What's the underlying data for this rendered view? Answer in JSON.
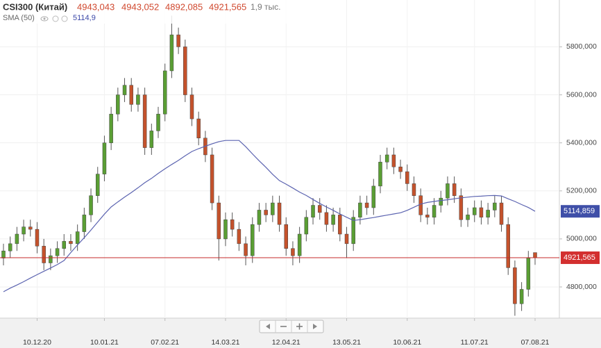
{
  "chart_data": {
    "type": "candlestick",
    "header": {
      "name": "CSI300 (Китай)",
      "open": "4943,043",
      "high": "4943,052",
      "low": "4892,085",
      "close": "4921,565",
      "volume": "1,9 тыс."
    },
    "sma_header": {
      "label": "SMA (50)",
      "value": "5114,9"
    },
    "categories": [
      null,
      null,
      null,
      null,
      null,
      "10.12.20",
      null,
      null,
      null,
      null,
      null,
      null,
      null,
      null,
      null,
      "10.01.21",
      null,
      null,
      null,
      null,
      null,
      null,
      null,
      null,
      "07.02.21",
      null,
      null,
      null,
      null,
      null,
      null,
      null,
      null,
      "14.03.21",
      null,
      null,
      null,
      null,
      null,
      null,
      null,
      null,
      "12.04.21",
      null,
      null,
      null,
      null,
      null,
      null,
      null,
      null,
      "13.05.21",
      null,
      null,
      null,
      null,
      null,
      null,
      null,
      null,
      "10.06.21",
      null,
      null,
      null,
      null,
      null,
      null,
      null,
      null,
      null,
      "11.07.21",
      null,
      null,
      null,
      null,
      null,
      null,
      null,
      null,
      "07.08.21"
    ],
    "open": [
      4920,
      4950,
      4980,
      5020,
      5050,
      5040,
      4970,
      4900,
      4930,
      4960,
      4990,
      4980,
      5030,
      5100,
      5180,
      5270,
      5400,
      5520,
      5600,
      5640,
      5560,
      5600,
      5380,
      5450,
      5520,
      5700,
      5850,
      5800,
      5600,
      5500,
      5420,
      5350,
      5150,
      5000,
      5080,
      5040,
      4980,
      4930,
      5060,
      5120,
      5100,
      5150,
      5060,
      4960,
      4930,
      5020,
      5090,
      5140,
      5110,
      5060,
      5100,
      5020,
      4980,
      5090,
      5150,
      5130,
      5220,
      5320,
      5350,
      5300,
      5280,
      5230,
      5180,
      5100,
      5090,
      5140,
      5170,
      5230,
      5180,
      5080,
      5100,
      5130,
      5090,
      5120,
      5150,
      5060,
      4880,
      4730,
      4790,
      4943.043
    ],
    "high": [
      4980,
      5010,
      5050,
      5080,
      5080,
      5070,
      5000,
      4960,
      4990,
      5020,
      5020,
      5060,
      5130,
      5210,
      5300,
      5430,
      5550,
      5630,
      5670,
      5670,
      5630,
      5630,
      5480,
      5550,
      5730,
      5930,
      5880,
      5830,
      5630,
      5530,
      5450,
      5380,
      5180,
      5110,
      5110,
      5070,
      5010,
      5090,
      5150,
      5150,
      5180,
      5180,
      5090,
      4990,
      5050,
      5120,
      5170,
      5170,
      5140,
      5130,
      5130,
      5050,
      5120,
      5180,
      5180,
      5250,
      5350,
      5380,
      5380,
      5330,
      5310,
      5260,
      5210,
      5130,
      5170,
      5200,
      5260,
      5260,
      5210,
      5130,
      5160,
      5160,
      5150,
      5180,
      5180,
      5090,
      4910,
      4820,
      4950,
      4943.052
    ],
    "low": [
      4890,
      4920,
      4950,
      4990,
      5010,
      4940,
      4870,
      4870,
      4900,
      4930,
      4950,
      4950,
      5000,
      5070,
      5150,
      5240,
      5370,
      5490,
      5570,
      5530,
      5530,
      5350,
      5350,
      5420,
      5490,
      5670,
      5770,
      5570,
      5470,
      5390,
      5320,
      5120,
      4910,
      4970,
      5010,
      4950,
      4890,
      4900,
      5030,
      5070,
      5070,
      5030,
      4930,
      4890,
      4900,
      4990,
      5060,
      5080,
      5030,
      5030,
      4990,
      4920,
      4950,
      5060,
      5100,
      5100,
      5190,
      5290,
      5270,
      5250,
      5200,
      5150,
      5070,
      5060,
      5060,
      5110,
      5140,
      5150,
      5050,
      5050,
      5070,
      5060,
      5060,
      5090,
      5030,
      4850,
      4680,
      4700,
      4760,
      4892.085
    ],
    "close": [
      4950,
      4980,
      5020,
      5050,
      5040,
      4970,
      4900,
      4930,
      4960,
      4990,
      4980,
      5030,
      5100,
      5180,
      5270,
      5400,
      5520,
      5600,
      5640,
      5560,
      5600,
      5380,
      5450,
      5520,
      5700,
      5850,
      5800,
      5600,
      5500,
      5420,
      5350,
      5150,
      5000,
      5080,
      5040,
      4980,
      4930,
      5060,
      5120,
      5100,
      5150,
      5060,
      4960,
      4930,
      5020,
      5090,
      5140,
      5110,
      5060,
      5100,
      5020,
      4980,
      5090,
      5150,
      5130,
      5220,
      5320,
      5350,
      5300,
      5280,
      5230,
      5180,
      5100,
      5090,
      5140,
      5170,
      5230,
      5180,
      5080,
      5100,
      5130,
      5090,
      5120,
      5150,
      5060,
      4880,
      4730,
      4790,
      4920,
      4921.565
    ],
    "close_label": "4921,565",
    "up_color": "#5a9e34",
    "down_color": "#c4522c",
    "sma": {
      "name": "SMA (50)",
      "color": "#5b63b0",
      "last_label": "5114,859",
      "values": [
        4780,
        4795,
        4808,
        4822,
        4837,
        4851,
        4865,
        4879,
        4893,
        4910,
        4943,
        4975,
        5005,
        5037,
        5070,
        5103,
        5133,
        5154,
        5174,
        5193,
        5213,
        5234,
        5252,
        5273,
        5292,
        5310,
        5327,
        5346,
        5364,
        5376,
        5386,
        5396,
        5405,
        5410,
        5410,
        5410,
        5384,
        5354,
        5325,
        5298,
        5269,
        5243,
        5228,
        5212,
        5195,
        5181,
        5164,
        5148,
        5133,
        5119,
        5104,
        5090,
        5077,
        5080,
        5085,
        5089,
        5094,
        5099,
        5104,
        5109,
        5119,
        5132,
        5145,
        5152,
        5156,
        5160,
        5163,
        5167,
        5171,
        5174,
        5177,
        5178,
        5180,
        5181,
        5179,
        5167,
        5156,
        5143,
        5131,
        5114.859
      ]
    },
    "ylim": [
      4670,
      5995
    ],
    "yticks": [
      {
        "value": 4800,
        "label": "4800,000"
      },
      {
        "value": 5000,
        "label": "5000,000"
      },
      {
        "value": 5200,
        "label": "5200,000"
      },
      {
        "value": 5400,
        "label": "5400,000"
      },
      {
        "value": 5600,
        "label": "5600,000"
      },
      {
        "value": 5800,
        "label": "5800,000"
      }
    ],
    "grid": true
  }
}
